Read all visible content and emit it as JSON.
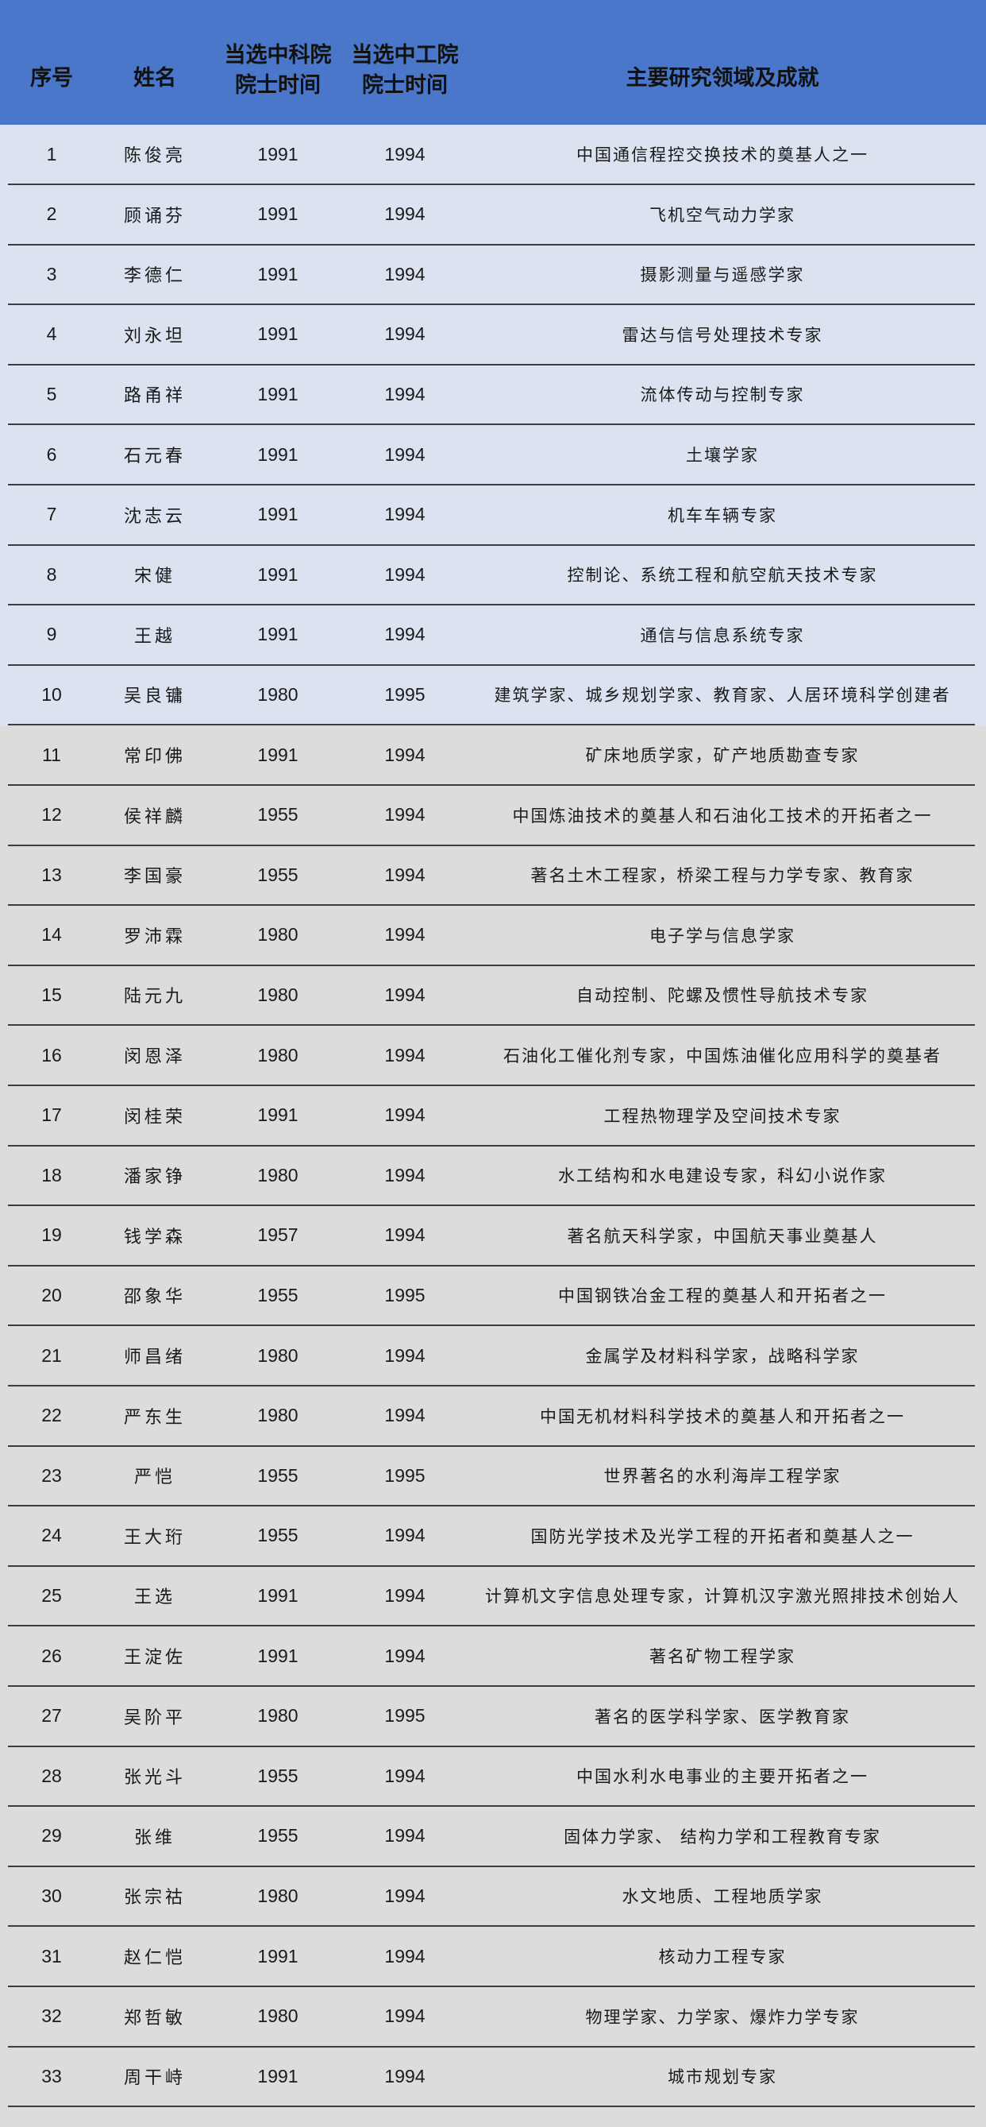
{
  "table": {
    "headers": {
      "seq": "序号",
      "name": "姓名",
      "cas_line1": "当选中科院",
      "cas_line2": "院士时间",
      "cae_line1": "当选中工院",
      "cae_line2": "院士时间",
      "desc": "主要研究领域及成就"
    },
    "colors": {
      "header_bg": "#4a77c9",
      "highlight_row_bg": "#dbe3f0",
      "row_bg": "#dcdcdc"
    },
    "rows": [
      {
        "seq": "1",
        "name": "陈俊亮",
        "cas": "1991",
        "cae": "1994",
        "desc": "中国通信程控交换技术的奠基人之一"
      },
      {
        "seq": "2",
        "name": "顾诵芬",
        "cas": "1991",
        "cae": "1994",
        "desc": "飞机空气动力学家"
      },
      {
        "seq": "3",
        "name": "李德仁",
        "cas": "1991",
        "cae": "1994",
        "desc": "摄影测量与遥感学家"
      },
      {
        "seq": "4",
        "name": "刘永坦",
        "cas": "1991",
        "cae": "1994",
        "desc": "雷达与信号处理技术专家"
      },
      {
        "seq": "5",
        "name": "路甬祥",
        "cas": "1991",
        "cae": "1994",
        "desc": "流体传动与控制专家"
      },
      {
        "seq": "6",
        "name": "石元春",
        "cas": "1991",
        "cae": "1994",
        "desc": "土壤学家"
      },
      {
        "seq": "7",
        "name": "沈志云",
        "cas": "1991",
        "cae": "1994",
        "desc": "机车车辆专家"
      },
      {
        "seq": "8",
        "name": "宋健",
        "cas": "1991",
        "cae": "1994",
        "desc": "控制论、系统工程和航空航天技术专家"
      },
      {
        "seq": "9",
        "name": "王越",
        "cas": "1991",
        "cae": "1994",
        "desc": "通信与信息系统专家"
      },
      {
        "seq": "10",
        "name": "吴良镛",
        "cas": "1980",
        "cae": "1995",
        "desc": "建筑学家、城乡规划学家、教育家、人居环境科学创建者"
      },
      {
        "seq": "11",
        "name": "常印佛",
        "cas": "1991",
        "cae": "1994",
        "desc": "矿床地质学家，矿产地质勘查专家"
      },
      {
        "seq": "12",
        "name": "侯祥麟",
        "cas": "1955",
        "cae": "1994",
        "desc": "中国炼油技术的奠基人和石油化工技术的开拓者之一"
      },
      {
        "seq": "13",
        "name": "李国豪",
        "cas": "1955",
        "cae": "1994",
        "desc": "著名土木工程家，桥梁工程与力学专家、教育家"
      },
      {
        "seq": "14",
        "name": "罗沛霖",
        "cas": "1980",
        "cae": "1994",
        "desc": "电子学与信息学家"
      },
      {
        "seq": "15",
        "name": "陆元九",
        "cas": "1980",
        "cae": "1994",
        "desc": "自动控制、陀螺及惯性导航技术专家"
      },
      {
        "seq": "16",
        "name": "闵恩泽",
        "cas": "1980",
        "cae": "1994",
        "desc": "石油化工催化剂专家，中国炼油催化应用科学的奠基者"
      },
      {
        "seq": "17",
        "name": "闵桂荣",
        "cas": "1991",
        "cae": "1994",
        "desc": "工程热物理学及空间技术专家"
      },
      {
        "seq": "18",
        "name": "潘家铮",
        "cas": "1980",
        "cae": "1994",
        "desc": "水工结构和水电建设专家，科幻小说作家"
      },
      {
        "seq": "19",
        "name": "钱学森",
        "cas": "1957",
        "cae": "1994",
        "desc": "著名航天科学家，中国航天事业奠基人"
      },
      {
        "seq": "20",
        "name": "邵象华",
        "cas": "1955",
        "cae": "1995",
        "desc": "中国钢铁冶金工程的奠基人和开拓者之一"
      },
      {
        "seq": "21",
        "name": "师昌绪",
        "cas": "1980",
        "cae": "1994",
        "desc": "金属学及材料科学家，战略科学家"
      },
      {
        "seq": "22",
        "name": "严东生",
        "cas": "1980",
        "cae": "1994",
        "desc": "中国无机材料科学技术的奠基人和开拓者之一"
      },
      {
        "seq": "23",
        "name": "严恺",
        "cas": "1955",
        "cae": "1995",
        "desc": "世界著名的水利海岸工程学家"
      },
      {
        "seq": "24",
        "name": "王大珩",
        "cas": "1955",
        "cae": "1994",
        "desc": "国防光学技术及光学工程的开拓者和奠基人之一"
      },
      {
        "seq": "25",
        "name": "王选",
        "cas": "1991",
        "cae": "1994",
        "desc": "计算机文字信息处理专家，计算机汉字激光照排技术创始人"
      },
      {
        "seq": "26",
        "name": "王淀佐",
        "cas": "1991",
        "cae": "1994",
        "desc": "著名矿物工程学家"
      },
      {
        "seq": "27",
        "name": "吴阶平",
        "cas": "1980",
        "cae": "1995",
        "desc": "著名的医学科学家、医学教育家"
      },
      {
        "seq": "28",
        "name": "张光斗",
        "cas": "1955",
        "cae": "1994",
        "desc": "中国水利水电事业的主要开拓者之一"
      },
      {
        "seq": "29",
        "name": "张维",
        "cas": "1955",
        "cae": "1994",
        "desc": "固体力学家、 结构力学和工程教育专家"
      },
      {
        "seq": "30",
        "name": "张宗祜",
        "cas": "1980",
        "cae": "1994",
        "desc": "水文地质、工程地质学家"
      },
      {
        "seq": "31",
        "name": "赵仁恺",
        "cas": "1991",
        "cae": "1994",
        "desc": "核动力工程专家"
      },
      {
        "seq": "32",
        "name": "郑哲敏",
        "cas": "1980",
        "cae": "1994",
        "desc": "物理学家、力学家、爆炸力学专家"
      },
      {
        "seq": "33",
        "name": "周干峙",
        "cas": "1991",
        "cae": "1994",
        "desc": "城市规划专家"
      }
    ]
  }
}
